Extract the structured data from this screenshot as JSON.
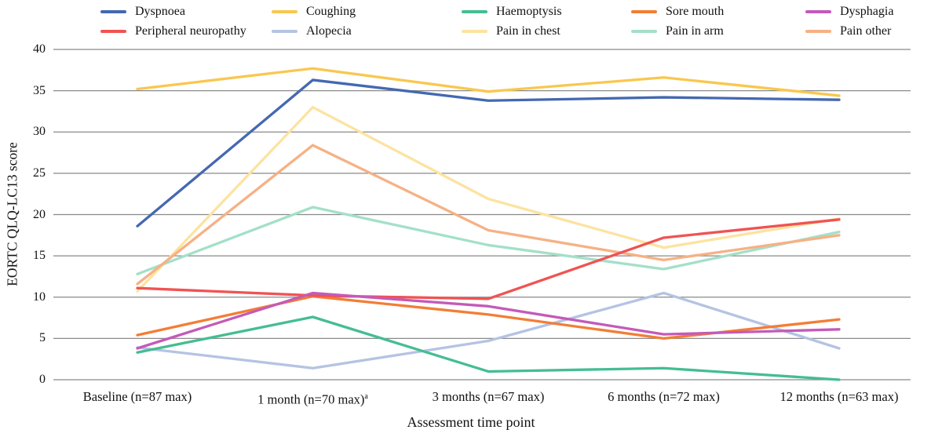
{
  "chart_data": {
    "type": "line",
    "title": "",
    "xlabel": "Assessment time point",
    "ylabel": "EORTC QLQ-LC13 score",
    "ylim": [
      0,
      40
    ],
    "ytick_step": 5,
    "grid": "horizontal",
    "legend_position": "top",
    "categories": [
      "Baseline (n=87 max)",
      "1 month (n=70 max)",
      "3 months (n=67 max)",
      "6 months (n=72 max)",
      "12 months (n=63 max)"
    ],
    "category_superscripts": [
      "",
      "a",
      "",
      "",
      ""
    ],
    "series": [
      {
        "name": "Dyspnoea",
        "color": "#4468b1",
        "values": [
          18.6,
          36.3,
          33.8,
          34.2,
          33.9
        ]
      },
      {
        "name": "Peripheral neuropathy",
        "color": "#f05352",
        "values": [
          11.1,
          10.2,
          9.8,
          17.2,
          19.4
        ]
      },
      {
        "name": "Coughing",
        "color": "#f9c74f",
        "values": [
          35.2,
          37.7,
          34.9,
          36.6,
          34.4
        ]
      },
      {
        "name": "Alopecia",
        "color": "#b5c3e3",
        "values": [
          3.9,
          1.4,
          4.7,
          10.5,
          3.8
        ]
      },
      {
        "name": "Haemoptysis",
        "color": "#45bd92",
        "values": [
          3.3,
          7.6,
          1.0,
          1.4,
          0.0
        ]
      },
      {
        "name": "Pain in chest",
        "color": "#fce3a0",
        "values": [
          10.7,
          33.0,
          21.9,
          16.0,
          19.5
        ]
      },
      {
        "name": "Sore mouth",
        "color": "#f37d35",
        "values": [
          5.4,
          10.1,
          7.9,
          5.0,
          7.3
        ]
      },
      {
        "name": "Pain in arm",
        "color": "#a3e0c8",
        "values": [
          12.8,
          20.9,
          16.3,
          13.4,
          17.9
        ]
      },
      {
        "name": "Dysphagia",
        "color": "#c45ab8",
        "values": [
          3.8,
          10.5,
          8.9,
          5.5,
          6.1
        ]
      },
      {
        "name": "Pain other",
        "color": "#f6b185",
        "values": [
          11.6,
          28.4,
          18.1,
          14.5,
          17.5
        ]
      }
    ],
    "gridline_color": "#8a8a8a"
  }
}
